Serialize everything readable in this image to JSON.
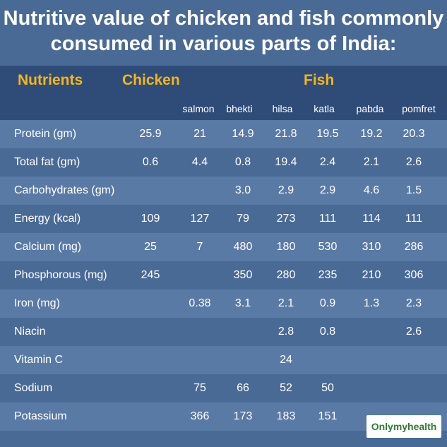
{
  "title_line1": "Nutritive value of chicken and fish commonly",
  "title_line2": "consumed in various parts of India:",
  "headers": {
    "nutrients": "Nutrients",
    "chicken": "Chicken",
    "fish": "Fish"
  },
  "species": [
    "salmon",
    "bhekti",
    "hilsa",
    "katla",
    "pabda",
    "pomfret"
  ],
  "rows": [
    {
      "label": "Protein (gm)",
      "values": [
        "25.9",
        "21",
        "14.9",
        "21.8",
        "19.5",
        "19.2",
        "20.3"
      ]
    },
    {
      "label": "Total fat (gm)",
      "values": [
        "0.6",
        "4.4",
        "0.8",
        "19.4",
        "2.4",
        "2.1",
        "2.6"
      ]
    },
    {
      "label": "Carbohydrates (gm)",
      "values": [
        "",
        "",
        "3.0",
        "2.9",
        "2.9",
        "4.6",
        "1.5"
      ]
    },
    {
      "label": "Energy (kcal)",
      "values": [
        "109",
        "127",
        "79",
        "273",
        "111",
        "114",
        "111"
      ]
    },
    {
      "label": "Calcium (mg)",
      "values": [
        "25",
        "7",
        "480",
        "180",
        "530",
        "310",
        "286"
      ]
    },
    {
      "label": "Phosphorous (mg)",
      "values": [
        "245",
        "",
        "350",
        "280",
        "235",
        "210",
        "306"
      ]
    },
    {
      "label": "Iron (mg)",
      "values": [
        "",
        "0.38",
        "3.1",
        "2.1",
        "0.9",
        "1.3",
        "2.3"
      ]
    },
    {
      "label": "Niacin",
      "values": [
        "",
        "",
        "",
        "2.8",
        "0.8",
        "",
        "2.6"
      ]
    },
    {
      "label": "Vitamin C",
      "values": [
        "",
        "",
        "",
        "24",
        "",
        "",
        ""
      ]
    },
    {
      "label": "Sodium",
      "values": [
        "",
        "75",
        "66",
        "52",
        "50",
        "",
        ""
      ]
    },
    {
      "label": "Potassium",
      "values": [
        "",
        "366",
        "173",
        "183",
        "151",
        "",
        ""
      ]
    }
  ],
  "logo": "Onlymyhealth",
  "colors": {
    "background": "#4a6a96",
    "row_stripe": "#5a7aa6",
    "header_band": "#2f4c78",
    "header_text": "#f5b619",
    "logo_text": "#2e7d32"
  }
}
